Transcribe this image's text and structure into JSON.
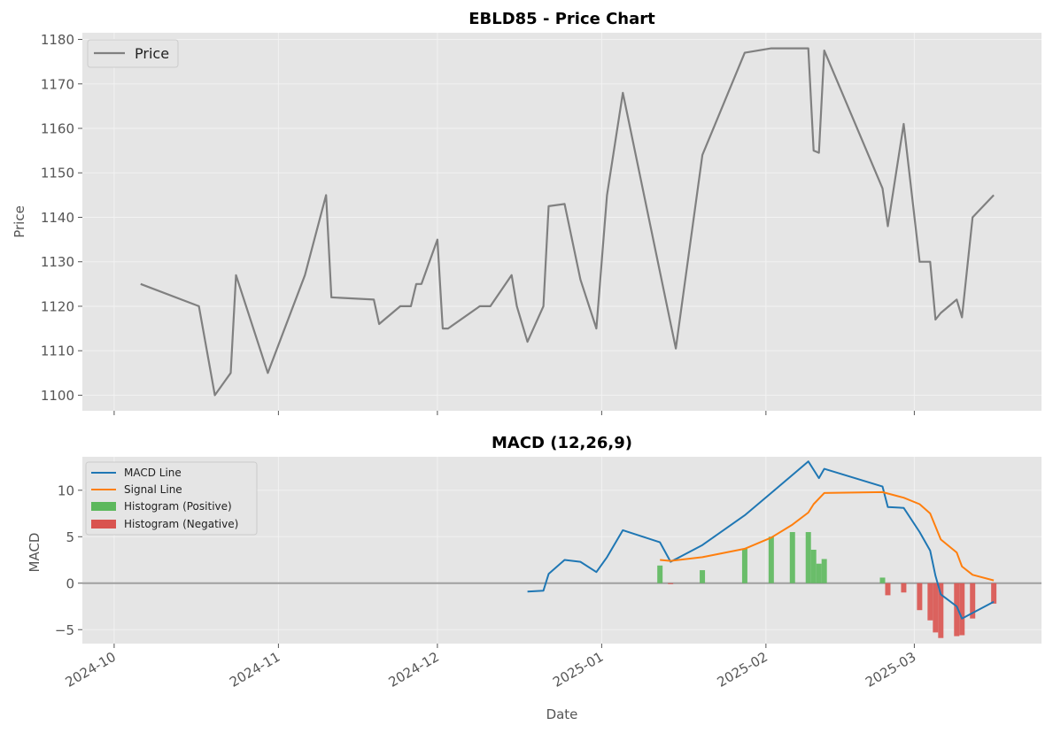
{
  "chart_data": [
    {
      "type": "line",
      "title": "EBLD85 - Price Chart",
      "xlabel": "",
      "ylabel": "Price",
      "ylim": [
        1096.5,
        1181.5
      ],
      "yticks": [
        1100,
        1110,
        1120,
        1130,
        1140,
        1150,
        1160,
        1170,
        1180
      ],
      "grid": true,
      "legend_position": "upper-left",
      "series": [
        {
          "name": "Price",
          "color": "#808080",
          "points": [
            [
              "2024-10-06",
              1125
            ],
            [
              "2024-10-17",
              1120
            ],
            [
              "2024-10-20",
              1100
            ],
            [
              "2024-10-23",
              1105
            ],
            [
              "2024-10-24",
              1127
            ],
            [
              "2024-10-30",
              1105
            ],
            [
              "2024-11-06",
              1127
            ],
            [
              "2024-11-10",
              1145
            ],
            [
              "2024-11-11",
              1122
            ],
            [
              "2024-11-19",
              1121.5
            ],
            [
              "2024-11-20",
              1116
            ],
            [
              "2024-11-24",
              1120
            ],
            [
              "2024-11-26",
              1120
            ],
            [
              "2024-11-27",
              1125
            ],
            [
              "2024-11-28",
              1125
            ],
            [
              "2024-12-01",
              1135
            ],
            [
              "2024-12-02",
              1115
            ],
            [
              "2024-12-03",
              1115
            ],
            [
              "2024-12-09",
              1120
            ],
            [
              "2024-12-11",
              1120
            ],
            [
              "2024-12-15",
              1127
            ],
            [
              "2024-12-16",
              1120
            ],
            [
              "2024-12-18",
              1112
            ],
            [
              "2024-12-21",
              1120
            ],
            [
              "2024-12-22",
              1142.5
            ],
            [
              "2024-12-25",
              1143
            ],
            [
              "2024-12-28",
              1126
            ],
            [
              "2024-12-31",
              1115
            ],
            [
              "2025-01-02",
              1145
            ],
            [
              "2025-01-05",
              1168
            ],
            [
              "2025-01-15",
              1110.5
            ],
            [
              "2025-01-20",
              1154
            ],
            [
              "2025-01-28",
              1177
            ],
            [
              "2025-02-02",
              1178
            ],
            [
              "2025-02-09",
              1178
            ],
            [
              "2025-02-10",
              1155
            ],
            [
              "2025-02-11",
              1154.5
            ],
            [
              "2025-02-12",
              1177.5
            ],
            [
              "2025-02-23",
              1146.5
            ],
            [
              "2025-02-24",
              1138
            ],
            [
              "2025-02-27",
              1161
            ],
            [
              "2025-03-02",
              1130
            ],
            [
              "2025-03-04",
              1130
            ],
            [
              "2025-03-05",
              1117
            ],
            [
              "2025-03-06",
              1118.5
            ],
            [
              "2025-03-09",
              1121.5
            ],
            [
              "2025-03-10",
              1117.5
            ],
            [
              "2025-03-12",
              1140
            ],
            [
              "2025-03-16",
              1145
            ]
          ]
        }
      ]
    },
    {
      "type": "line",
      "title": "MACD (12,26,9)",
      "xlabel": "Date",
      "ylabel": "MACD",
      "ylim": [
        -6.5,
        13.6
      ],
      "yticks": [
        -5,
        0,
        5,
        10
      ],
      "xticks": [
        "2024-10-01",
        "2024-11-01",
        "2024-12-01",
        "2025-01-01",
        "2025-02-01",
        "2025-03-01"
      ],
      "xtick_labels": [
        "2024-10",
        "2024-11",
        "2024-12",
        "2025-01",
        "2025-02",
        "2025-03"
      ],
      "xlim": [
        "2024-09-25",
        "2025-03-25"
      ],
      "grid": true,
      "zero_line": true,
      "legend_position": "upper-left",
      "series": [
        {
          "name": "MACD Line",
          "color": "#1f77b4",
          "points": [
            [
              "2024-12-18",
              -0.9
            ],
            [
              "2024-12-21",
              -0.8
            ],
            [
              "2024-12-22",
              1.0
            ],
            [
              "2024-12-25",
              2.5
            ],
            [
              "2024-12-28",
              2.3
            ],
            [
              "2024-12-31",
              1.2
            ],
            [
              "2025-01-02",
              2.8
            ],
            [
              "2025-01-05",
              5.7
            ],
            [
              "2025-01-12",
              4.4
            ],
            [
              "2025-01-14",
              2.3
            ],
            [
              "2025-01-20",
              4.1
            ],
            [
              "2025-01-28",
              7.3
            ],
            [
              "2025-02-02",
              9.7
            ],
            [
              "2025-02-09",
              13.1
            ],
            [
              "2025-02-11",
              11.3
            ],
            [
              "2025-02-12",
              12.3
            ],
            [
              "2025-02-23",
              10.4
            ],
            [
              "2025-02-24",
              8.2
            ],
            [
              "2025-02-27",
              8.1
            ],
            [
              "2025-03-02",
              5.5
            ],
            [
              "2025-03-04",
              3.5
            ],
            [
              "2025-03-05",
              0.8
            ],
            [
              "2025-03-06",
              -1.2
            ],
            [
              "2025-03-09",
              -2.5
            ],
            [
              "2025-03-10",
              -3.8
            ],
            [
              "2025-03-12",
              -3.2
            ],
            [
              "2025-03-16",
              -2.0
            ]
          ]
        },
        {
          "name": "Signal Line",
          "color": "#ff7f0e",
          "points": [
            [
              "2025-01-12",
              2.5
            ],
            [
              "2025-01-14",
              2.4
            ],
            [
              "2025-01-20",
              2.8
            ],
            [
              "2025-01-28",
              3.7
            ],
            [
              "2025-02-02",
              4.9
            ],
            [
              "2025-02-06",
              6.3
            ],
            [
              "2025-02-09",
              7.6
            ],
            [
              "2025-02-10",
              8.5
            ],
            [
              "2025-02-12",
              9.7
            ],
            [
              "2025-02-23",
              9.8
            ],
            [
              "2025-02-27",
              9.2
            ],
            [
              "2025-03-02",
              8.5
            ],
            [
              "2025-03-04",
              7.5
            ],
            [
              "2025-03-06",
              4.7
            ],
            [
              "2025-03-09",
              3.3
            ],
            [
              "2025-03-10",
              1.8
            ],
            [
              "2025-03-12",
              0.9
            ],
            [
              "2025-03-16",
              0.3
            ]
          ]
        },
        {
          "name": "Histogram (Positive)",
          "color": "#5cb85c",
          "bars": [
            [
              "2025-01-12",
              1.9
            ],
            [
              "2025-01-20",
              1.4
            ],
            [
              "2025-01-28",
              3.7
            ],
            [
              "2025-02-02",
              5.0
            ],
            [
              "2025-02-06",
              5.5
            ],
            [
              "2025-02-09",
              5.5
            ],
            [
              "2025-02-10",
              3.6
            ],
            [
              "2025-02-11",
              2.1
            ],
            [
              "2025-02-12",
              2.6
            ],
            [
              "2025-02-23",
              0.6
            ]
          ]
        },
        {
          "name": "Histogram (Negative)",
          "color": "#d9534f",
          "bars": [
            [
              "2025-01-14",
              -0.1
            ],
            [
              "2025-02-24",
              -1.3
            ],
            [
              "2025-02-27",
              -1.0
            ],
            [
              "2025-03-02",
              -2.9
            ],
            [
              "2025-03-04",
              -4.0
            ],
            [
              "2025-03-05",
              -5.3
            ],
            [
              "2025-03-06",
              -5.9
            ],
            [
              "2025-03-09",
              -5.7
            ],
            [
              "2025-03-10",
              -5.6
            ],
            [
              "2025-03-12",
              -3.8
            ],
            [
              "2025-03-16",
              -2.2
            ]
          ]
        }
      ]
    }
  ]
}
